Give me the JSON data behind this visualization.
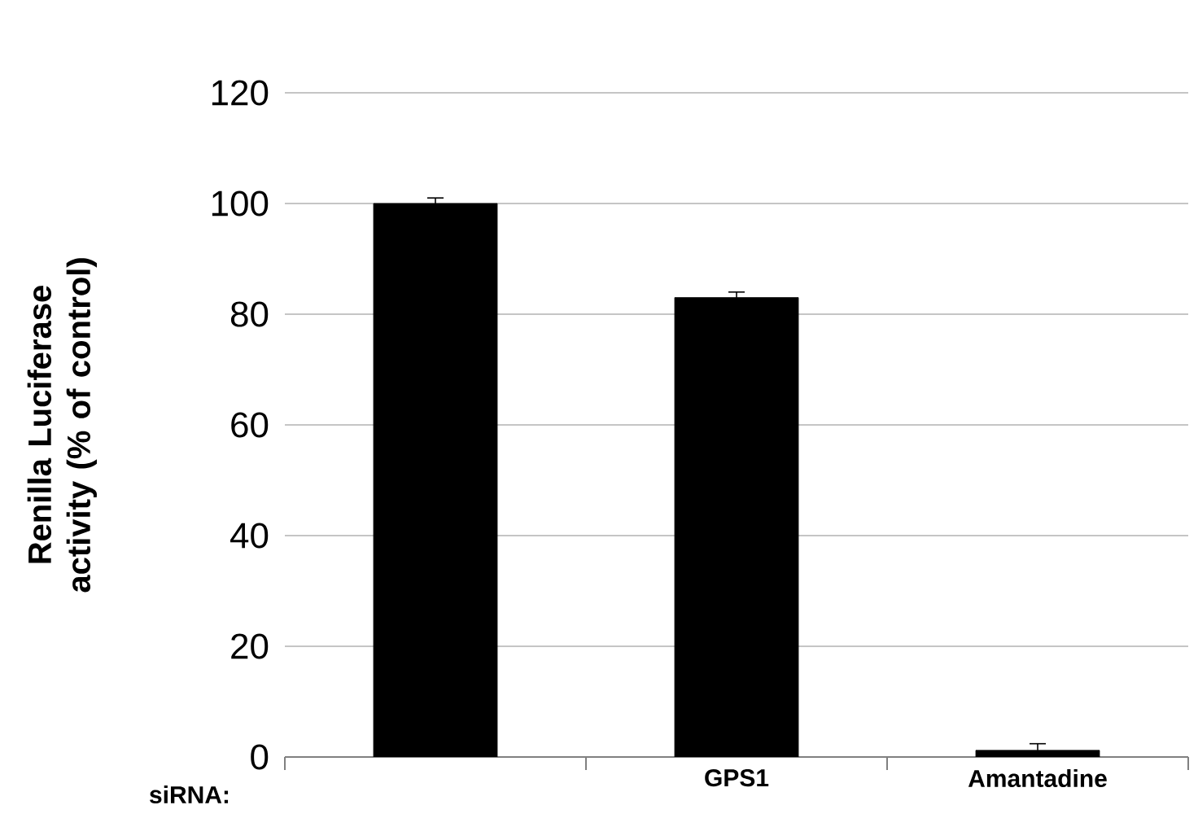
{
  "chart_data": {
    "type": "bar",
    "ylabel": "Renilla Luciferase activity (% of control)",
    "xlabel": "siRNA:",
    "categories": [
      null,
      "GPS1",
      "Amantadine"
    ],
    "values": [
      100,
      83,
      1.2
    ],
    "errors": [
      1,
      1,
      1.2
    ],
    "color": "#000000",
    "ylim": [
      0,
      120
    ],
    "yticks": [
      0,
      20,
      40,
      60,
      80,
      100,
      120
    ],
    "grid": "y"
  }
}
